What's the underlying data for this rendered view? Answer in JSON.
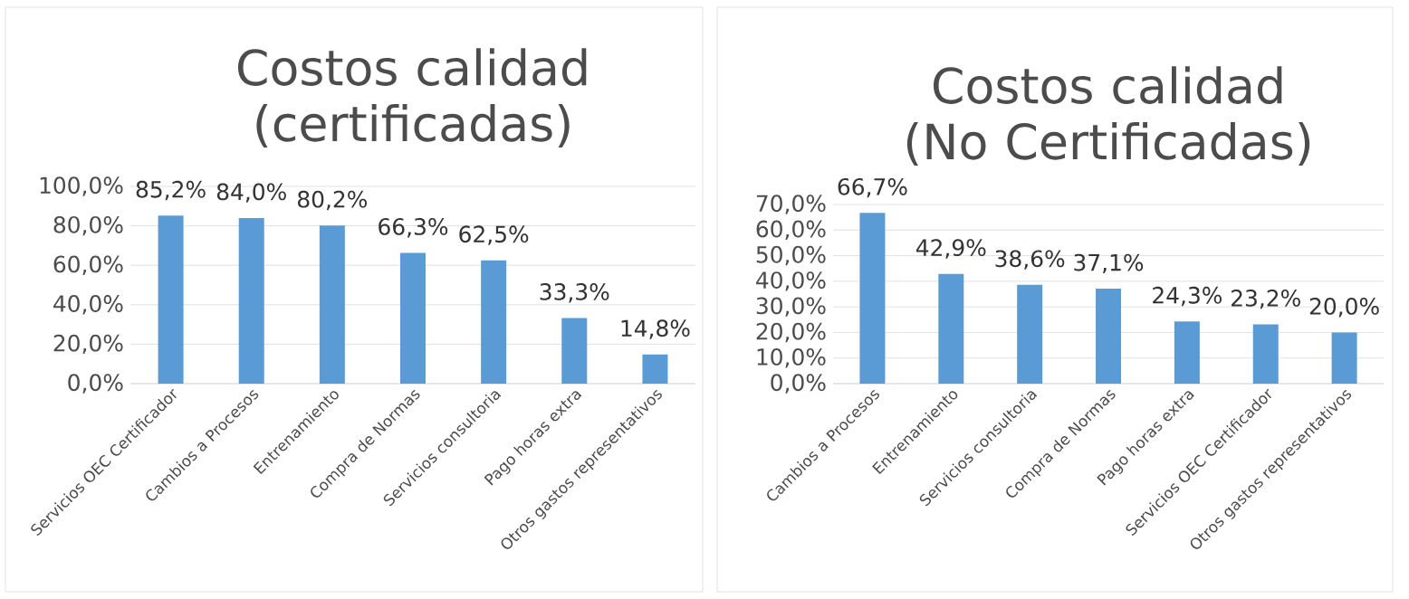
{
  "chart_data": [
    {
      "type": "bar",
      "title": "Costos calidad (certificadas)",
      "categories": [
        "Servicios OEC Certificador",
        "Cambios a Procesos",
        "Entrenamiento",
        "Compra de Normas",
        "Servicios consultoria",
        "Pago horas extra",
        "Otros gastos representativos"
      ],
      "values": [
        85.2,
        84.0,
        80.2,
        66.3,
        62.5,
        33.3,
        14.8
      ],
      "value_labels": [
        "85,2%",
        "84,0%",
        "80,2%",
        "66,3%",
        "62,5%",
        "33,3%",
        "14,8%"
      ],
      "color": "#5b9bd5",
      "ylim": [
        0,
        100
      ],
      "yticks": [
        {
          "value": 0,
          "label": "0,0%"
        },
        {
          "value": 20,
          "label": "20,0%"
        },
        {
          "value": 40,
          "label": "40,0%"
        },
        {
          "value": 60,
          "label": "60,0%"
        },
        {
          "value": 80,
          "label": "80,0%"
        },
        {
          "value": 100,
          "label": "100,0%"
        }
      ],
      "grid": "y"
    },
    {
      "type": "bar",
      "title": "Costos calidad (No Certificadas)",
      "categories": [
        "Cambios a Procesos",
        "Entrenamiento",
        "Servicios consultoria",
        "Compra de Normas",
        "Pago horas extra",
        "Servicios OEC Certificador",
        "Otros gastos representativos"
      ],
      "values": [
        66.7,
        42.9,
        38.6,
        37.1,
        24.3,
        23.2,
        20.0
      ],
      "value_labels": [
        "66,7%",
        "42,9%",
        "38,6%",
        "37,1%",
        "24,3%",
        "23,2%",
        "20,0%"
      ],
      "color": "#5b9bd5",
      "ylim": [
        0,
        70
      ],
      "yticks": [
        {
          "value": 0,
          "label": "0,0%"
        },
        {
          "value": 10,
          "label": "10,0%"
        },
        {
          "value": 20,
          "label": "20,0%"
        },
        {
          "value": 30,
          "label": "30,0%"
        },
        {
          "value": 40,
          "label": "40,0%"
        },
        {
          "value": 50,
          "label": "50,0%"
        },
        {
          "value": 60,
          "label": "60,0%"
        },
        {
          "value": 70,
          "label": "70,0%"
        }
      ],
      "grid": "y"
    }
  ]
}
